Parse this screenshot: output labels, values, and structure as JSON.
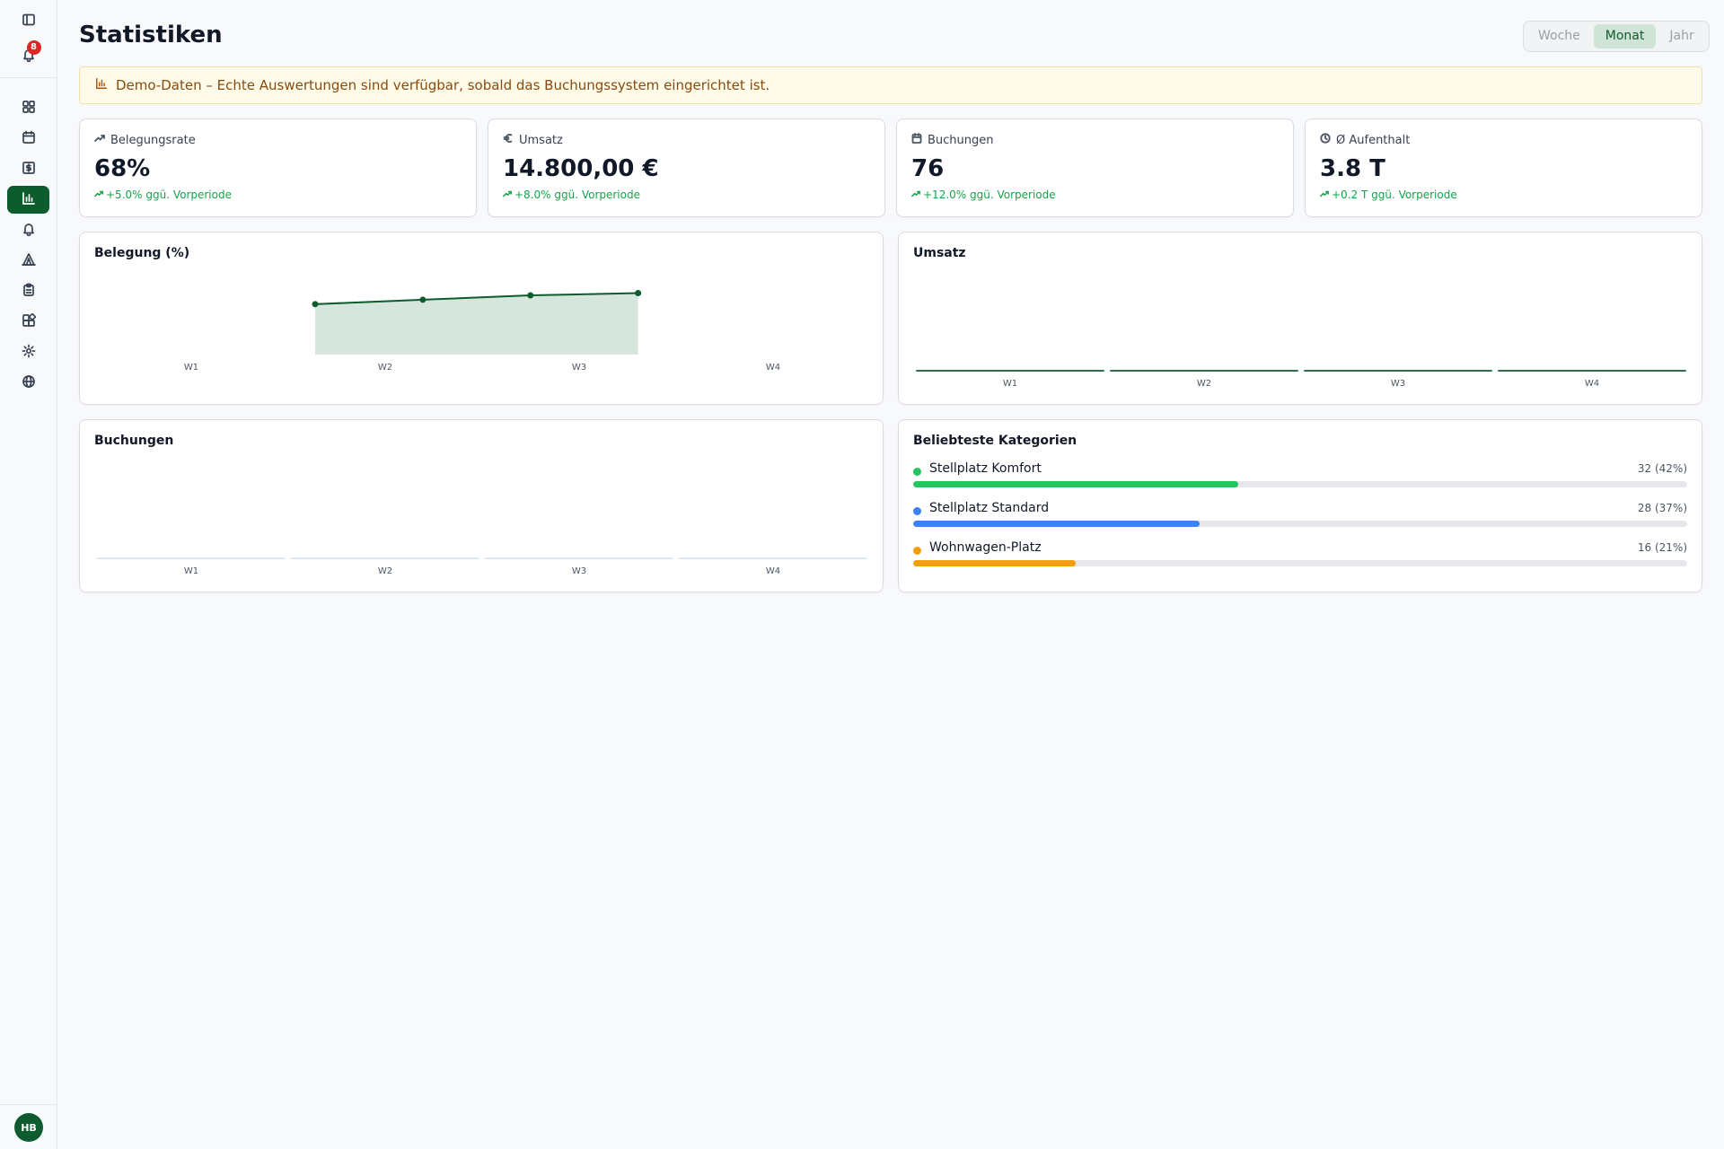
{
  "sidebar": {
    "items": [
      {
        "name": "panel-toggle-icon",
        "label": "Panel"
      },
      {
        "name": "bell-icon",
        "label": "Benachrichtigungen",
        "badge": "8"
      },
      {
        "name": "dashboard-icon",
        "label": "Dashboard"
      },
      {
        "name": "calendar-icon",
        "label": "Kalender"
      },
      {
        "name": "dollar-icon",
        "label": "Finanzen"
      },
      {
        "name": "bar-chart-icon",
        "label": "Statistiken",
        "active": true
      },
      {
        "name": "bell-icon",
        "label": "Hinweise"
      },
      {
        "name": "tent-icon",
        "label": "Stellplätze"
      },
      {
        "name": "clipboard-icon",
        "label": "Aufgaben"
      },
      {
        "name": "extensions-icon",
        "label": "Erweiterungen"
      },
      {
        "name": "gear-icon",
        "label": "Einstellungen"
      },
      {
        "name": "globe-icon",
        "label": "Website"
      }
    ],
    "avatar": "HB"
  },
  "header": {
    "title": "Statistiken",
    "periods": [
      "Woche",
      "Monat",
      "Jahr"
    ],
    "active_period": "Monat"
  },
  "banner": {
    "text": "Demo-Daten – Echte Auswertungen sind verfügbar, sobald das Buchungssystem eingerichtet ist."
  },
  "stats": [
    {
      "label": "Belegungsrate",
      "icon": "trend-up-icon",
      "value": "68%",
      "delta": "+5.0% ggü. Vorperiode"
    },
    {
      "label": "Umsatz",
      "icon": "euro-icon",
      "value": "14.800,00 €",
      "delta": "+8.0% ggü. Vorperiode"
    },
    {
      "label": "Buchungen",
      "icon": "calendar-icon",
      "value": "76",
      "delta": "+12.0% ggü. Vorperiode"
    },
    {
      "label": "Ø Aufenthalt",
      "icon": "clock-icon",
      "value": "3.8 T",
      "delta": "+0.2 T ggü. Vorperiode"
    }
  ],
  "colors": {
    "accent": "#0d5c2e",
    "positive": "#16a34a",
    "area_fill": "#d6e6dc",
    "cat_komfort": "#22c55e",
    "cat_standard": "#3b82f6",
    "cat_wohnwagen": "#f59e0b"
  },
  "chart_data": [
    {
      "type": "area",
      "title": "Belegung (%)",
      "categories": [
        "W1",
        "W2",
        "W3",
        "W4"
      ],
      "series": [
        {
          "values": [
            62,
            66,
            70,
            72
          ]
        }
      ],
      "ylim": [
        0,
        100
      ]
    },
    {
      "type": "bar",
      "title": "Umsatz",
      "categories": [
        "W1",
        "W2",
        "W3",
        "W4"
      ],
      "series": [
        {
          "values": [
            0,
            0,
            0,
            0
          ]
        }
      ]
    },
    {
      "type": "bar",
      "title": "Buchungen",
      "categories": [
        "W1",
        "W2",
        "W3",
        "W4"
      ],
      "series": [
        {
          "values": [
            0,
            0,
            0,
            0
          ]
        }
      ]
    },
    {
      "type": "bar",
      "title": "Beliebteste Kategorien",
      "categories": [
        "Stellplatz Komfort",
        "Stellplatz Standard",
        "Wohnwagen-Platz"
      ],
      "values": [
        32,
        28,
        16
      ],
      "labels": [
        "32 (42%)",
        "28 (37%)",
        "16 (21%)"
      ],
      "percent": [
        42,
        37,
        21
      ]
    }
  ]
}
